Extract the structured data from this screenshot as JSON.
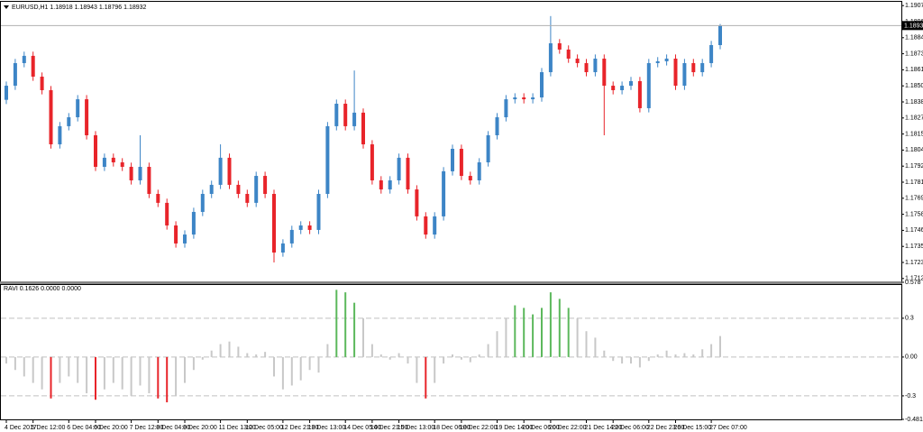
{
  "chart_data": [
    {
      "type": "candlestick",
      "title": "EURUSD,H1 1.18918 1.18943 1.18796 1.18932",
      "up_color": "#3d85c6",
      "down_color": "#e8242a",
      "last_price": 1.18932,
      "ylim": [
        1.1712,
        1.19075
      ],
      "yticks": [
        1.19075,
        {
          "value": 1.1896,
          "label": "1.18960"
        },
        1.18845,
        {
          "value": 1.1873,
          "label": "1.18730"
        },
        1.18615,
        {
          "value": 1.185,
          "label": "1.18500"
        },
        1.18385,
        {
          "value": 1.1827,
          "label": "1.18270"
        },
        1.18155,
        {
          "value": 1.1804,
          "label": "1.18040"
        },
        1.17925,
        {
          "value": 1.1781,
          "label": "1.17810"
        },
        1.17695,
        {
          "value": 1.1758,
          "label": "1.17580"
        },
        1.17465,
        {
          "value": 1.1735,
          "label": "1.17350"
        },
        1.17235,
        {
          "value": 1.1712,
          "label": "1.17120"
        }
      ],
      "xticks": [
        {
          "value": 0,
          "label": "4 Dec 2017"
        },
        {
          "value": 3,
          "label": "5 Dec 12:00"
        },
        {
          "value": 7,
          "label": "6 Dec 04:00"
        },
        {
          "value": 10,
          "label": "6 Dec 20:00"
        },
        {
          "value": 14,
          "label": "7 Dec 12:00"
        },
        {
          "value": 17,
          "label": "8 Dec 04:00"
        },
        {
          "value": 20,
          "label": "8 Dec 20:00"
        },
        {
          "value": 24,
          "label": "11 Dec 13:00"
        },
        {
          "value": 27,
          "label": "12 Dec 05:00"
        },
        {
          "value": 31,
          "label": "12 Dec 21:00"
        },
        {
          "value": 34,
          "label": "13 Dec 13:00"
        },
        {
          "value": 38,
          "label": "14 Dec 05:00"
        },
        {
          "value": 41,
          "label": "14 Dec 21:00"
        },
        {
          "value": 44,
          "label": "15 Dec 13:00"
        },
        {
          "value": 48,
          "label": "18 Dec 06:00"
        },
        {
          "value": 51,
          "label": "18 Dec 22:00"
        },
        {
          "value": 55,
          "label": "19 Dec 14:00"
        },
        {
          "value": 58,
          "label": "20 Dec 06:00"
        },
        {
          "value": 61,
          "label": "20 Dec 22:00"
        },
        {
          "value": 65,
          "label": "21 Dec 14:00"
        },
        {
          "value": 68,
          "label": "22 Dec 06:00"
        },
        {
          "value": 72,
          "label": "22 Dec 23:00"
        },
        {
          "value": 75,
          "label": "26 Dec 15:00"
        },
        {
          "value": 79,
          "label": "27 Dec 07:00"
        }
      ],
      "open": [
        1.184,
        1.18501,
        1.18663,
        1.18715,
        1.18566,
        1.18469,
        1.18081,
        1.18211,
        1.18275,
        1.18404,
        1.18146,
        1.1792,
        1.17985,
        1.17952,
        1.1792,
        1.17823,
        1.1792,
        1.17726,
        1.17662,
        1.175,
        1.17371,
        1.17435,
        1.17597,
        1.17726,
        1.17791,
        1.17985,
        1.17791,
        1.17726,
        1.17662,
        1.17855,
        1.17726,
        1.17306,
        1.17371,
        1.17468,
        1.175,
        1.17468,
        1.17726,
        1.18211,
        1.18372,
        1.18211,
        1.18308,
        1.18081,
        1.17823,
        1.17758,
        1.17823,
        1.17985,
        1.17758,
        1.17565,
        1.17435,
        1.17565,
        1.17888,
        1.18049,
        1.17855,
        1.17823,
        1.17952,
        1.18146,
        1.18275,
        1.18404,
        1.18417,
        1.18404,
        1.18417,
        1.18598,
        1.18805,
        1.1876,
        1.18695,
        1.18663,
        1.18598,
        1.18695,
        1.18501,
        1.18469,
        1.18501,
        1.18534,
        1.1834,
        1.18663,
        1.18676,
        1.18695,
        1.18501,
        1.18663,
        1.18598,
        1.18663,
        1.18792
      ],
      "high": [
        1.18531,
        1.18693,
        1.18745,
        1.18745,
        1.18596,
        1.18499,
        1.18241,
        1.18305,
        1.18434,
        1.18434,
        1.18176,
        1.18015,
        1.18015,
        1.17982,
        1.1795,
        1.18146,
        1.1795,
        1.17756,
        1.17692,
        1.1753,
        1.17465,
        1.17627,
        1.17756,
        1.17821,
        1.18081,
        1.18015,
        1.17821,
        1.17756,
        1.17885,
        1.17885,
        1.17756,
        1.17401,
        1.17498,
        1.1753,
        1.1753,
        1.17756,
        1.18241,
        1.18402,
        1.18402,
        1.1861,
        1.18338,
        1.18111,
        1.17853,
        1.17853,
        1.18015,
        1.18015,
        1.17788,
        1.17595,
        1.17595,
        1.17918,
        1.18079,
        1.18079,
        1.17885,
        1.17982,
        1.18176,
        1.18305,
        1.18434,
        1.18447,
        1.18447,
        1.18447,
        1.18628,
        1.19,
        1.18835,
        1.1879,
        1.18725,
        1.18693,
        1.18725,
        1.18725,
        1.18531,
        1.18531,
        1.18564,
        1.18564,
        1.18693,
        1.18706,
        1.18725,
        1.18725,
        1.18693,
        1.18693,
        1.18693,
        1.18822,
        1.18943
      ],
      "low": [
        1.1837,
        1.18471,
        1.18633,
        1.18536,
        1.18439,
        1.18051,
        1.18051,
        1.18181,
        1.18245,
        1.18116,
        1.1789,
        1.1789,
        1.17922,
        1.1789,
        1.17793,
        1.17793,
        1.17696,
        1.17632,
        1.1747,
        1.17341,
        1.17341,
        1.17405,
        1.17567,
        1.17696,
        1.17761,
        1.17761,
        1.17696,
        1.17632,
        1.17632,
        1.17696,
        1.17235,
        1.17276,
        1.17341,
        1.17438,
        1.17438,
        1.17438,
        1.17696,
        1.18181,
        1.18181,
        1.18181,
        1.18051,
        1.17793,
        1.17728,
        1.17728,
        1.17793,
        1.17728,
        1.17535,
        1.17405,
        1.17405,
        1.17535,
        1.17858,
        1.17825,
        1.17793,
        1.17793,
        1.17922,
        1.18116,
        1.18245,
        1.18374,
        1.18374,
        1.18374,
        1.18387,
        1.18568,
        1.1873,
        1.18665,
        1.18633,
        1.18568,
        1.18568,
        1.18146,
        1.18439,
        1.18439,
        1.18471,
        1.1831,
        1.1831,
        1.18633,
        1.18646,
        1.18471,
        1.18471,
        1.18568,
        1.18568,
        1.18633,
        1.18762
      ],
      "close": [
        1.18501,
        1.18663,
        1.18715,
        1.18566,
        1.18469,
        1.18081,
        1.18211,
        1.18275,
        1.18404,
        1.18146,
        1.1792,
        1.17985,
        1.17952,
        1.1792,
        1.17823,
        1.1792,
        1.17726,
        1.17662,
        1.175,
        1.17371,
        1.17435,
        1.17597,
        1.17726,
        1.17791,
        1.17985,
        1.17791,
        1.17726,
        1.17662,
        1.17855,
        1.17726,
        1.17306,
        1.17371,
        1.17468,
        1.175,
        1.17468,
        1.17726,
        1.18211,
        1.18372,
        1.18211,
        1.18308,
        1.18081,
        1.17823,
        1.17758,
        1.17823,
        1.17985,
        1.17758,
        1.17565,
        1.17435,
        1.17565,
        1.17888,
        1.18049,
        1.17855,
        1.17823,
        1.17952,
        1.18146,
        1.18275,
        1.18404,
        1.18417,
        1.18404,
        1.18417,
        1.18598,
        1.18805,
        1.1876,
        1.18695,
        1.18663,
        1.18598,
        1.18695,
        1.18501,
        1.18469,
        1.18501,
        1.18534,
        1.1834,
        1.18663,
        1.18676,
        1.18695,
        1.18501,
        1.18663,
        1.18598,
        1.18663,
        1.18792,
        1.18932
      ]
    },
    {
      "type": "histogram",
      "title": "RAVI 0.1626 0.0000 0.0000",
      "up_color": "#5cb85c",
      "down_color": "#e8242a",
      "color": "#c8c8c8",
      "ylim": [
        -0.4818,
        0.578
      ],
      "yticks": [
        0.578,
        0.3,
        {
          "value": 0,
          "label": "0.00"
        },
        -0.3,
        -0.4818
      ],
      "values": [
        -0.05,
        -0.1,
        -0.15,
        -0.2,
        -0.25,
        -0.32,
        -0.2,
        -0.15,
        -0.2,
        -0.28,
        -0.33,
        -0.25,
        -0.2,
        -0.25,
        -0.3,
        -0.22,
        -0.28,
        -0.32,
        -0.35,
        -0.3,
        -0.2,
        -0.1,
        -0.02,
        0.05,
        0.1,
        0.12,
        0.08,
        0.03,
        0.02,
        0.04,
        -0.15,
        -0.25,
        -0.22,
        -0.18,
        -0.1,
        -0.12,
        0.1,
        0.52,
        0.5,
        0.42,
        0.3,
        0.1,
        0.02,
        -0.02,
        0.03,
        -0.05,
        -0.2,
        -0.32,
        -0.2,
        -0.05,
        0.02,
        -0.02,
        -0.04,
        0.02,
        0.1,
        0.2,
        0.3,
        0.4,
        0.38,
        0.33,
        0.38,
        0.5,
        0.45,
        0.38,
        0.3,
        0.2,
        0.15,
        0.05,
        -0.03,
        -0.05,
        -0.05,
        -0.08,
        -0.03,
        0.02,
        0.05,
        0.02,
        0.03,
        0.02,
        0.06,
        0.1,
        0.1626
      ]
    }
  ]
}
